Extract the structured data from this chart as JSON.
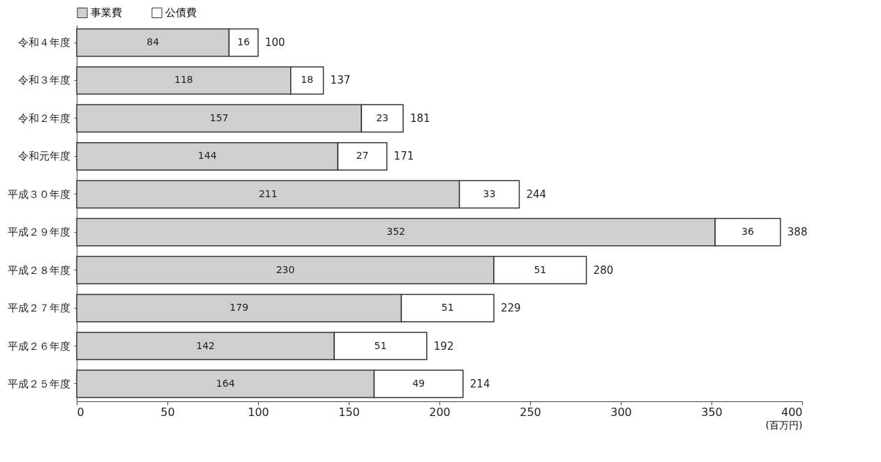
{
  "chart_data": {
    "type": "bar",
    "orientation": "horizontal",
    "stacked": true,
    "xlabel": "(百万円)",
    "categories": [
      "令和４年度",
      "令和３年度",
      "令和２年度",
      "令和元年度",
      "平成３０年度",
      "平成２９年度",
      "平成２８年度",
      "平成２７年度",
      "平成２６年度",
      "平成２５年度"
    ],
    "series": [
      {
        "name": "事業費",
        "color": "#cfcfcf",
        "values": [
          84,
          118,
          157,
          144,
          211,
          352,
          230,
          179,
          142,
          164
        ]
      },
      {
        "name": "公債費",
        "color": "#ffffff",
        "values": [
          16,
          18,
          23,
          27,
          33,
          36,
          51,
          51,
          51,
          49
        ]
      }
    ],
    "totals": [
      "100",
      "137",
      "181",
      "171",
      "244",
      "388",
      "280",
      "229",
      "192",
      "214"
    ],
    "data_labels": true,
    "legend": "top left",
    "grid": false,
    "xlim": [
      0,
      400
    ],
    "xticks": [
      0,
      50,
      100,
      150,
      200,
      250,
      300,
      350,
      400
    ]
  }
}
